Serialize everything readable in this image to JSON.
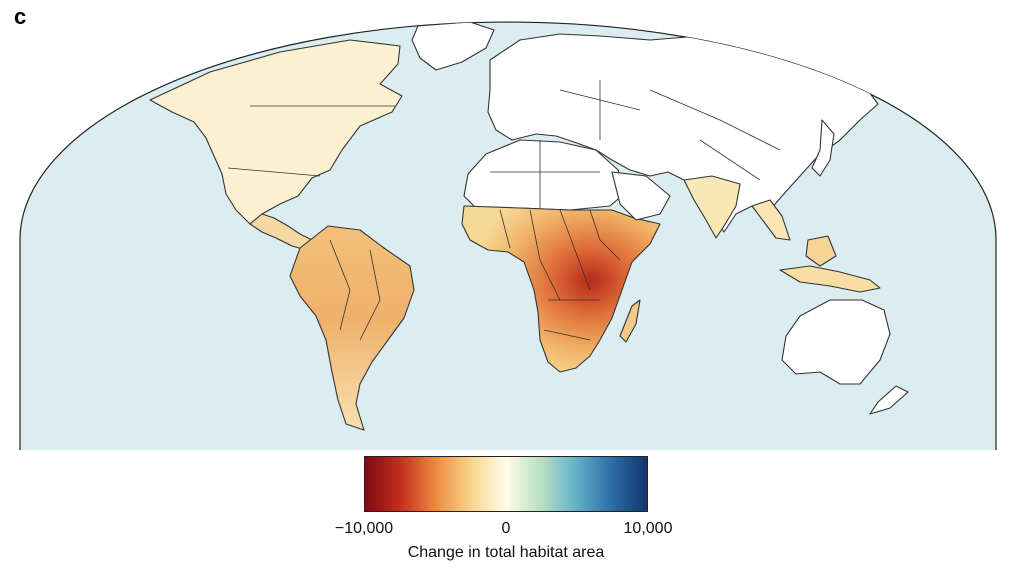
{
  "figure": {
    "panel_label": "c"
  },
  "colors": {
    "ocean": "#dcedf2",
    "land_no_change": "#ffffff",
    "border": "#333333"
  },
  "legend": {
    "title": "Change in total habitat area",
    "ticks": [
      "−10,000",
      "0",
      "10,000"
    ],
    "range": [
      -10000,
      10000
    ],
    "gradient_stops": [
      "#7f0a14",
      "#c22f1e",
      "#ec8a3e",
      "#f7d58a",
      "#fffce8",
      "#b9e0c4",
      "#62b0c8",
      "#2b6ea6",
      "#15346e"
    ]
  },
  "map": {
    "projection": "Mollweide",
    "regions_with_habitat_loss": [
      "Sub-Saharan Africa",
      "East Africa (strongest)",
      "South America",
      "Central America",
      "North America",
      "South Asia",
      "Southeast Asia"
    ],
    "regions_no_data": [
      "North Africa",
      "Middle East",
      "Australia",
      "Greenland"
    ]
  }
}
